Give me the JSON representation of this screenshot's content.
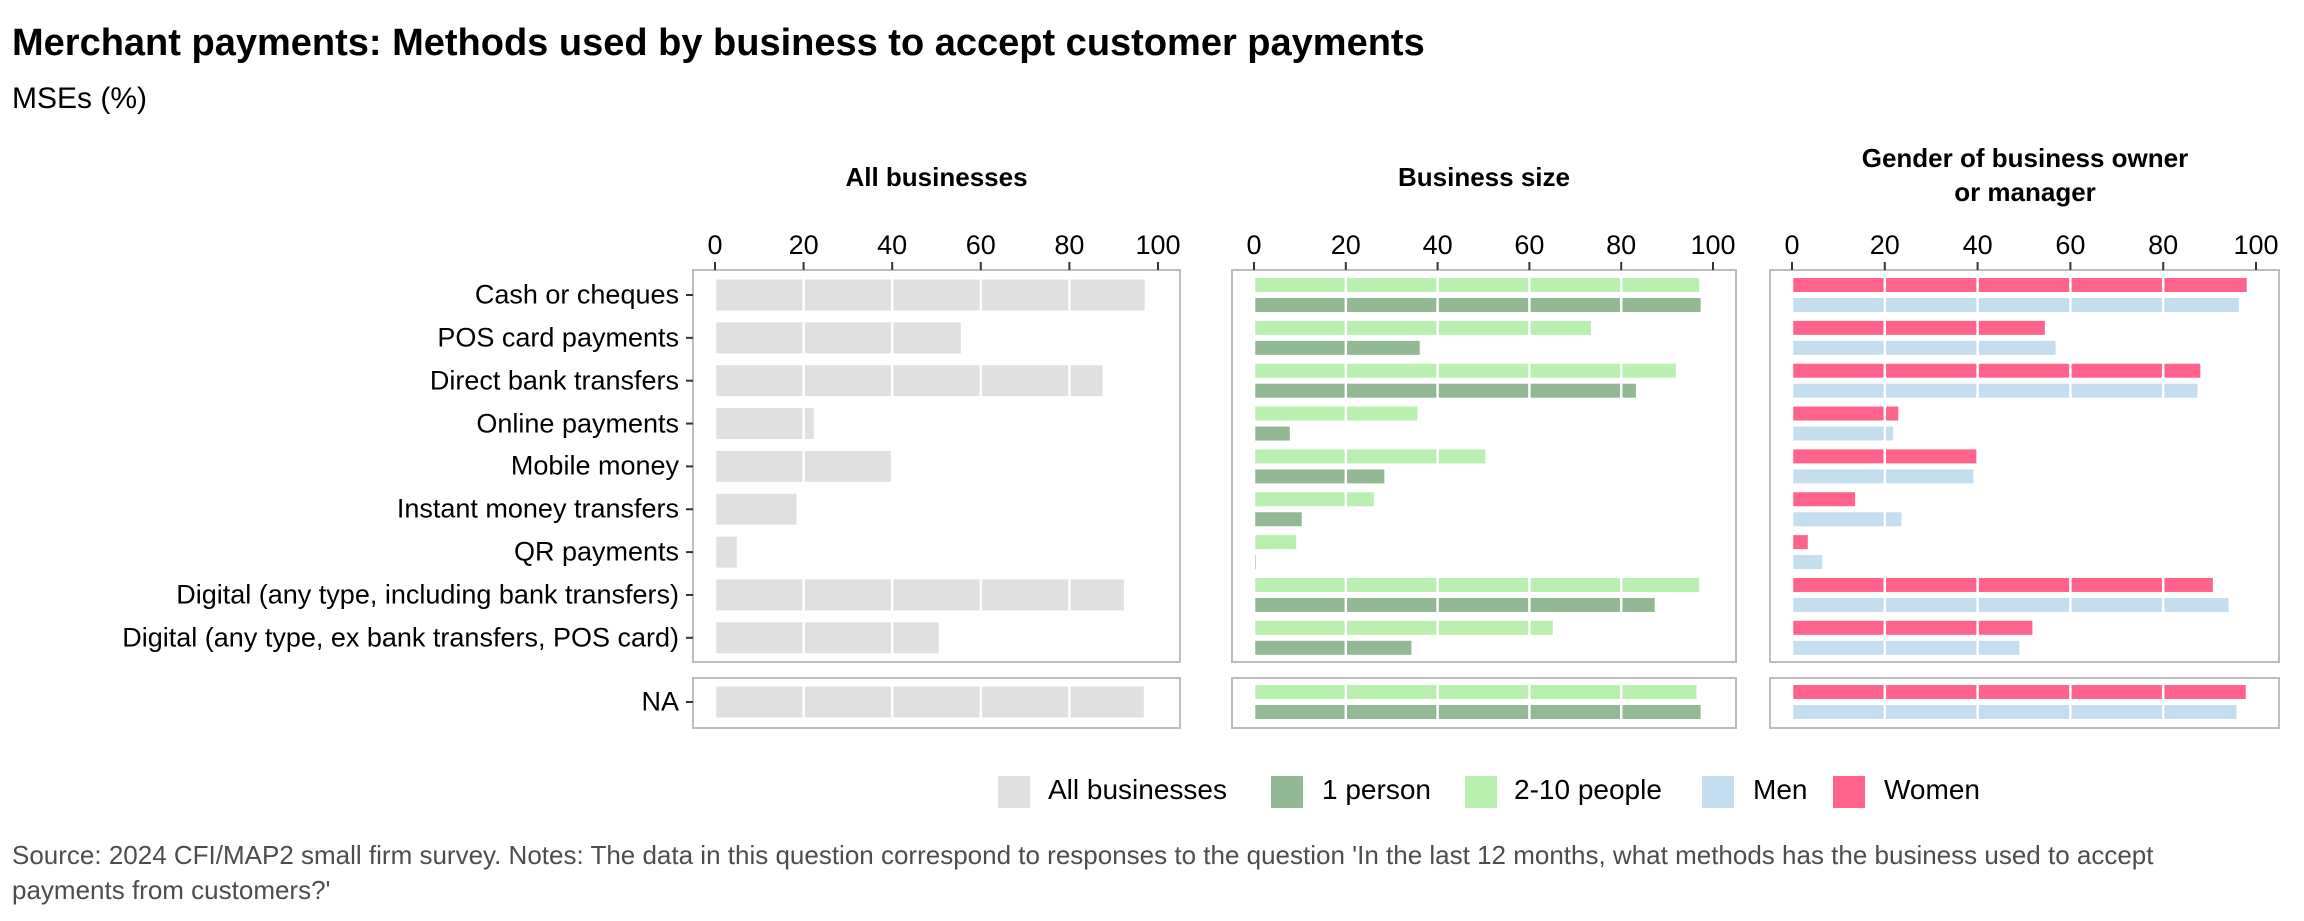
{
  "chart_data": {
    "type": "bar",
    "orientation": "horizontal",
    "title": "Merchant payments: Methods used by business to accept customer payments",
    "subtitle": "MSEs (%)",
    "categories": [
      "Cash or cheques",
      "POS card payments",
      "Direct bank transfers",
      "Online payments",
      "Mobile money",
      "Instant money transfers",
      "QR payments",
      "Digital (any type, including bank transfers)",
      "Digital (any type, ex bank transfers, POS card)"
    ],
    "na_category": "NA",
    "xlim": [
      0,
      100
    ],
    "xticks": [
      "0",
      "20",
      "40",
      "60",
      "80",
      "100"
    ],
    "panels": [
      {
        "title": "All businesses",
        "series": [
          {
            "name": "All businesses",
            "color": "#E0E0E0",
            "values": [
              97,
              55.5,
              87.5,
              22.3,
              39.7,
              18.4,
              4.9,
              92.3,
              50.5
            ],
            "na": 96.8
          }
        ]
      },
      {
        "title": "Business size",
        "series": [
          {
            "name": "2-10 people",
            "color": "#B9EFAF",
            "values": [
              97,
              73.4,
              91.9,
              35.6,
              50.4,
              26.1,
              9.2,
              97,
              65.1
            ],
            "na": 96.4
          },
          {
            "name": "1 person",
            "color": "#93B994",
            "values": [
              97.3,
              36.1,
              83.2,
              7.8,
              28.4,
              10.4,
              0.4,
              87.3,
              34.3
            ],
            "na": 97.3
          }
        ]
      },
      {
        "title": "Gender of business owner or manager",
        "title_lines": [
          "Gender of business owner",
          "or manager"
        ],
        "series": [
          {
            "name": "Women",
            "color": "#FF638B",
            "values": [
              98,
              54.5,
              88,
              22.9,
              39.8,
              13.6,
              3.4,
              90.7,
              51.8
            ],
            "na": 97.8
          },
          {
            "name": "Men",
            "color": "#C4DEEF",
            "values": [
              96.3,
              56.8,
              87.4,
              21.8,
              39.1,
              23.6,
              6.5,
              94.1,
              49
            ],
            "na": 95.8
          }
        ]
      }
    ],
    "legend": {
      "placement": "bottom-right",
      "items": [
        {
          "label": "All businesses",
          "color": "#E0E0E0"
        },
        {
          "label": "1 person",
          "color": "#93B994"
        },
        {
          "label": "2-10 people",
          "color": "#B9EFAF"
        },
        {
          "label": "Men",
          "color": "#C4DEEF"
        },
        {
          "label": "Women",
          "color": "#FF638B"
        }
      ]
    },
    "grid": true
  },
  "source": "Source: 2024 CFI/MAP2 small firm survey. Notes: The data in this question correspond to responses to the question 'In the last 12 months, what methods has the business used to accept payments from customers?'"
}
